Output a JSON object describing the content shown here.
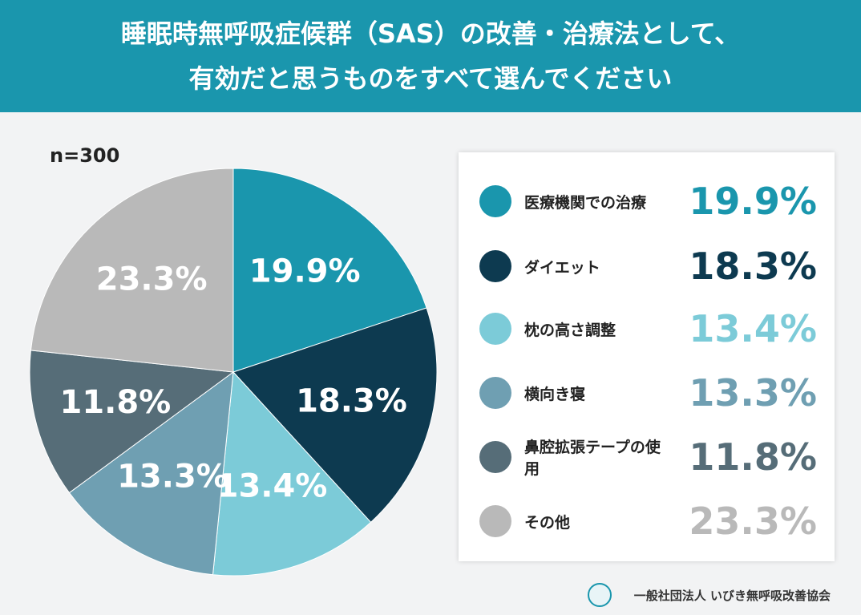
{
  "chart_data": {
    "type": "pie",
    "title": "睡眠時無呼吸症候群（SAS）の改善・治療法として、\n有効だと思うものをすべて選んでください",
    "subtitle": "n=300",
    "categories": [
      "医療機関での治療",
      "ダイエット",
      "枕の高さ調整",
      "横向き寝",
      "鼻腔拡張テープの使用",
      "その他"
    ],
    "values": [
      19.9,
      18.3,
      13.4,
      13.3,
      11.8,
      23.3
    ],
    "value_labels": [
      "19.9%",
      "18.3%",
      "13.4%",
      "13.3%",
      "11.8%",
      "23.3%"
    ],
    "colors": [
      "#1a96ad",
      "#0d3a50",
      "#7ccbd8",
      "#6f9fb2",
      "#566d78",
      "#b9b9b9"
    ],
    "source": "一般社団法人 いびき無呼吸改善協会"
  }
}
